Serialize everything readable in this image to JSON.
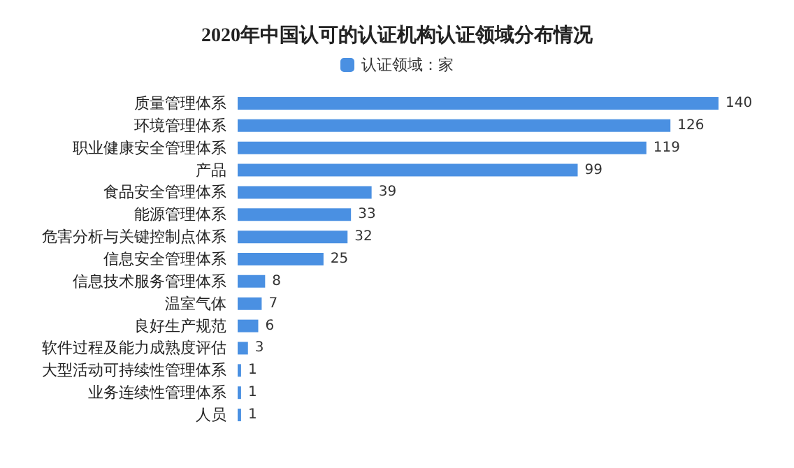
{
  "chart_data": {
    "type": "bar",
    "orientation": "horizontal",
    "title": "2020年中国认可的认证机构认证领域分布情况",
    "legend": "top",
    "tick_labels": "y",
    "data_labels": true,
    "categories": [
      "质量管理体系",
      "环境管理体系",
      "职业健康安全管理体系",
      "产品",
      "食品安全管理体系",
      "能源管理体系",
      "危害分析与关键控制点体系",
      "信息安全管理体系",
      "信息技术服务管理体系",
      "温室气体",
      "良好生产规范",
      "软件过程及能力成熟度评估",
      "大型活动可持续性管理体系",
      "业务连续性管理体系",
      "人员"
    ],
    "series": [
      {
        "name": "认证领域：家",
        "color": "#4a90e2",
        "values": [
          140,
          126,
          119,
          99,
          39,
          33,
          32,
          25,
          8,
          7,
          6,
          3,
          1,
          1,
          1
        ]
      }
    ]
  }
}
